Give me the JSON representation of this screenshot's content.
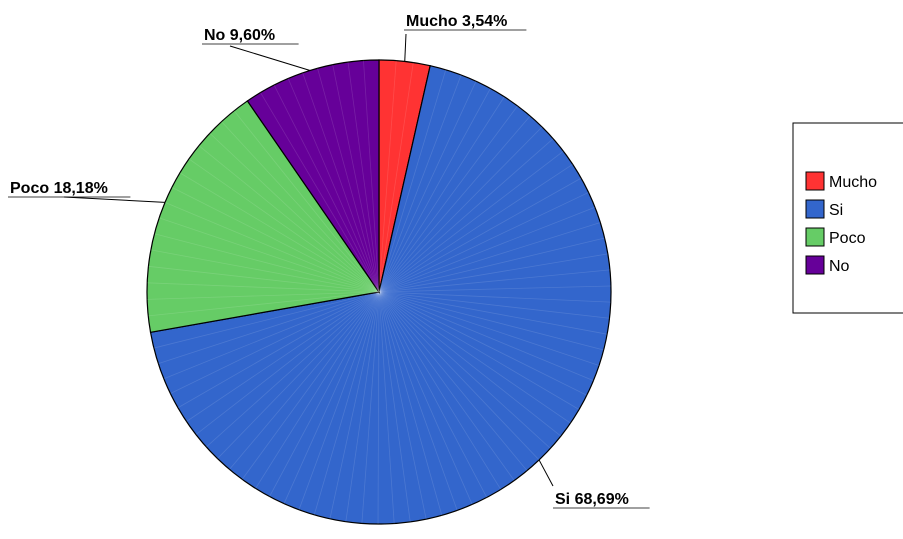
{
  "chart_data": {
    "type": "pie",
    "title": "",
    "start_angle_deg": 0,
    "direction": "clockwise",
    "slices": [
      {
        "label": "Mucho",
        "value": 3.54,
        "value_label": "3,54%",
        "color": "#ff3333"
      },
      {
        "label": "Si",
        "value": 68.69,
        "value_label": "68,69%",
        "color": "#3366cc"
      },
      {
        "label": "Poco",
        "value": 18.18,
        "value_label": "18,18%",
        "color": "#66cc66"
      },
      {
        "label": "No",
        "value": 9.6,
        "value_label": "9,60%",
        "color": "#660099"
      }
    ],
    "legend": {
      "position": "right",
      "items": [
        "Mucho",
        "Si",
        "Poco",
        "No"
      ]
    }
  }
}
